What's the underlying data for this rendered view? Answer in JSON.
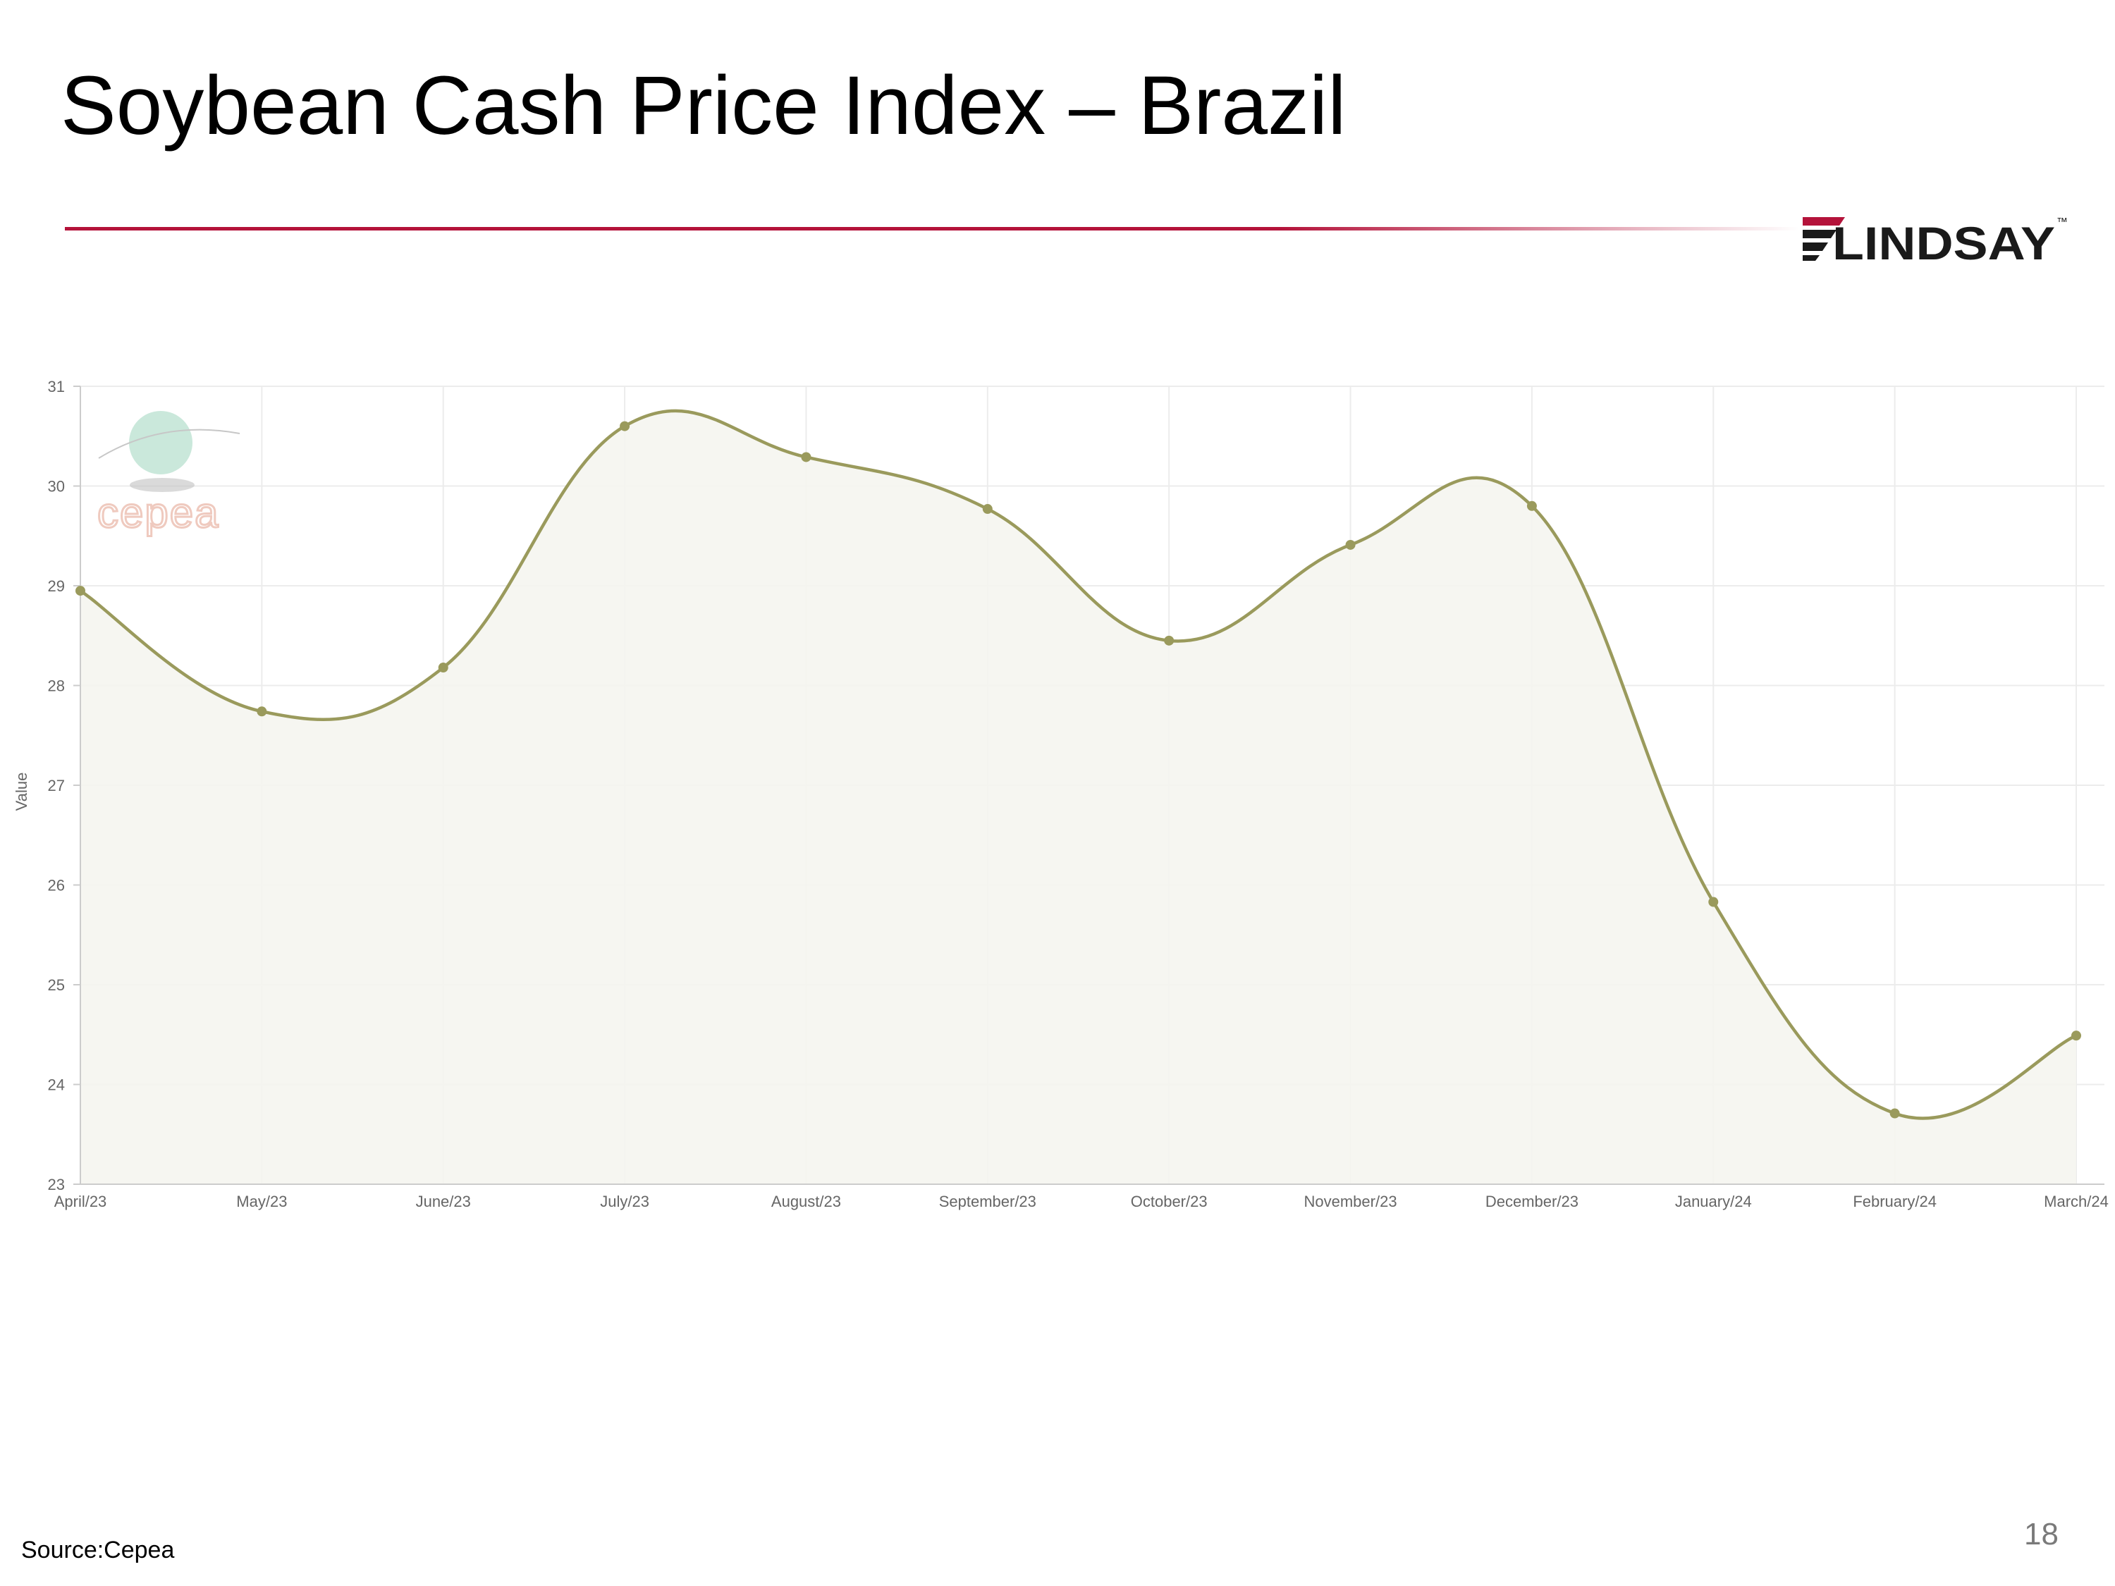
{
  "slide": {
    "title": "Soybean Cash Price Index – Brazil",
    "source": "Source:Cepea",
    "page_number": "18"
  },
  "brand": {
    "name": "LINDSAY",
    "trademark": "™",
    "accent_color": "#b4133a"
  },
  "watermark": {
    "text": "cepea"
  },
  "colors": {
    "line": "#9a9a5c",
    "fill": "#f5f5f0",
    "grid": "#ececec",
    "tick_text": "#666666"
  },
  "chart_data": {
    "type": "area",
    "title": "",
    "xlabel": "",
    "ylabel": "Value",
    "x": [
      "April/23",
      "May/23",
      "June/23",
      "July/23",
      "August/23",
      "September/23",
      "October/23",
      "November/23",
      "December/23",
      "January/24",
      "February/24",
      "March/24"
    ],
    "series": [
      {
        "values": [
          28.95,
          27.74,
          28.18,
          30.6,
          30.29,
          29.77,
          28.45,
          29.41,
          29.8,
          25.83,
          23.71,
          24.49
        ]
      }
    ],
    "ylim": [
      23,
      31
    ],
    "yticks": [
      23,
      24,
      25,
      26,
      27,
      28,
      29,
      30,
      31
    ],
    "grid": true,
    "smooth": true,
    "legend": "none"
  }
}
